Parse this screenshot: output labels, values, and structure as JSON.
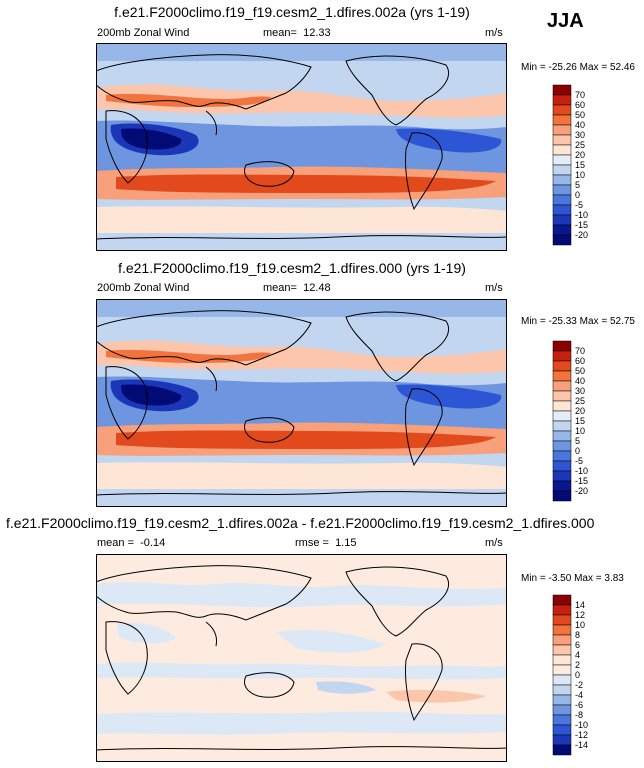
{
  "season": "JJA",
  "chart_data": [
    {
      "type": "heatmap",
      "title": "f.e21.F2000climo.f19_f19.cesm2_1.dfires.002a (yrs 1-19)",
      "variable": "200mb Zonal Wind",
      "mean_label": "mean=",
      "mean": "12.33",
      "units": "m/s",
      "min_label": "Min =",
      "min": "-25.26",
      "max_label": "Max =",
      "max": "52.46",
      "colorbar_levels": [
        "70",
        "60",
        "50",
        "40",
        "30",
        "25",
        "20",
        "15",
        "10",
        "5",
        "0",
        "-5",
        "-10",
        "-15",
        "-20"
      ],
      "colors": [
        "#8b0000",
        "#c62010",
        "#e24a1e",
        "#f2733e",
        "#f7a07a",
        "#fbc6ab",
        "#fde6d6",
        "#e4edf8",
        "#c2d6f0",
        "#96b7e8",
        "#6d95e0",
        "#4876dc",
        "#2c56d3",
        "#1b37b7",
        "#0a1590",
        "#020a75"
      ]
    },
    {
      "type": "heatmap",
      "title": "f.e21.F2000climo.f19_f19.cesm2_1.dfires.000 (yrs 1-19)",
      "variable": "200mb Zonal Wind",
      "mean_label": "mean=",
      "mean": "12.48",
      "units": "m/s",
      "min_label": "Min =",
      "min": "-25.33",
      "max_label": "Max =",
      "max": "52.75",
      "colorbar_levels": [
        "70",
        "60",
        "50",
        "40",
        "30",
        "25",
        "20",
        "15",
        "10",
        "5",
        "0",
        "-5",
        "-10",
        "-15",
        "-20"
      ],
      "colors": [
        "#8b0000",
        "#c62010",
        "#e24a1e",
        "#f2733e",
        "#f7a07a",
        "#fbc6ab",
        "#fde6d6",
        "#e4edf8",
        "#c2d6f0",
        "#96b7e8",
        "#6d95e0",
        "#4876dc",
        "#2c56d3",
        "#1b37b7",
        "#0a1590",
        "#020a75"
      ]
    },
    {
      "type": "heatmap",
      "title": "f.e21.F2000climo.f19_f19.cesm2_1.dfires.002a - f.e21.F2000climo.f19_f19.cesm2_1.dfires.000",
      "mean_label": "mean =",
      "mean": "-0.14",
      "rmse_label": "rmse =",
      "rmse": "1.15",
      "units": "m/s",
      "min_label": "Min =",
      "min": "-3.50",
      "max_label": "Max =",
      "max": "3.83",
      "colorbar_levels": [
        "14",
        "12",
        "10",
        "8",
        "6",
        "4",
        "2",
        "0",
        "-2",
        "-4",
        "-6",
        "-8",
        "-10",
        "-12",
        "-14"
      ],
      "colors": [
        "#8b0000",
        "#c62010",
        "#e24a1e",
        "#f2733e",
        "#f7a07a",
        "#fbc6ab",
        "#fde6d6",
        "#fdebe0",
        "#dde8f7",
        "#c2d6f0",
        "#96b7e8",
        "#6d95e0",
        "#4876dc",
        "#2c56d3",
        "#1b37b7",
        "#020a75"
      ]
    }
  ]
}
